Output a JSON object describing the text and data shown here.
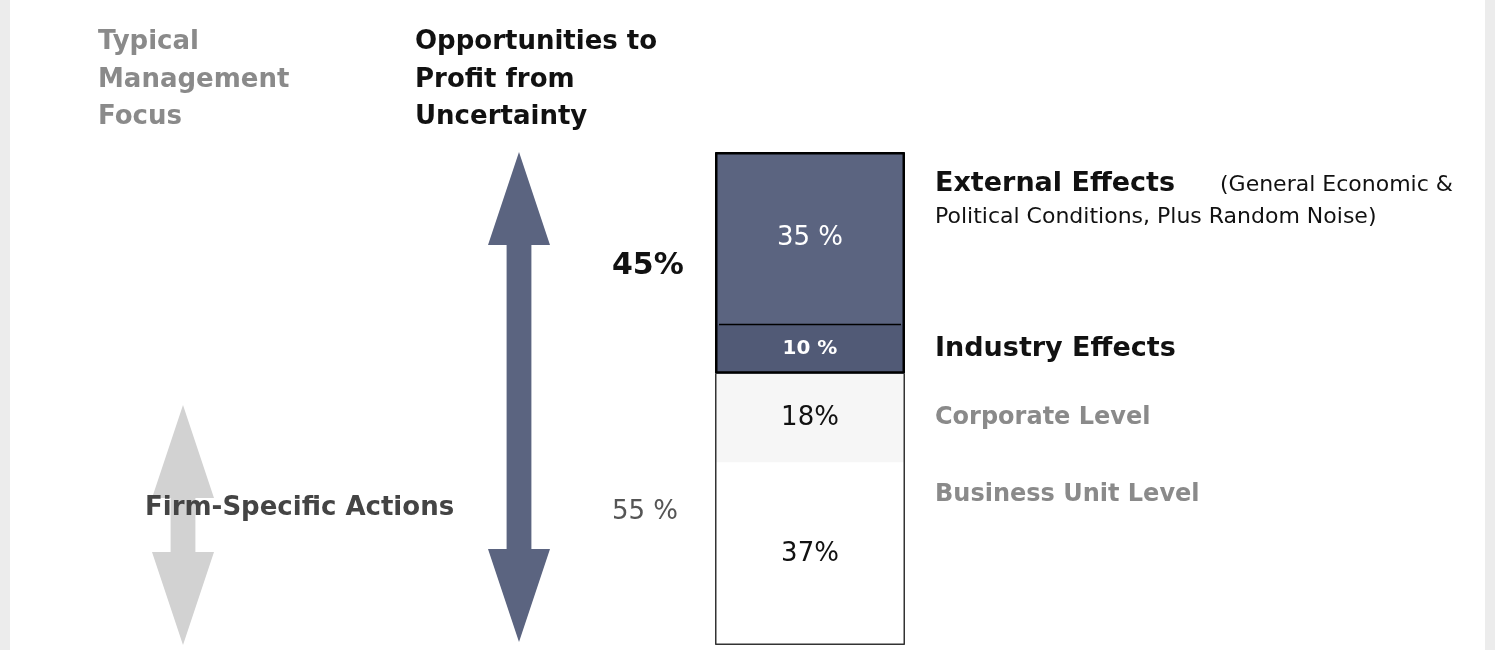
{
  "chart_data": {
    "type": "bar",
    "stacked": true,
    "legend": false,
    "categories": [
      null
    ],
    "series": [
      {
        "name": "Business Unit Level",
        "color": "#ffffff",
        "values": [
          37
        ],
        "value_labels": [
          "37%"
        ]
      },
      {
        "name": "Corporate Level",
        "color": "#f6f6f6",
        "values": [
          18
        ],
        "value_labels": [
          "18%"
        ]
      },
      {
        "name": "Industry Effects",
        "color": "#515a76",
        "values": [
          10
        ],
        "value_labels": [
          "10 %"
        ]
      },
      {
        "name": "External Effects",
        "color": "#5b6480",
        "values": [
          35
        ],
        "value_labels": [
          "35 %"
        ]
      }
    ],
    "annotations": [
      "(General Economic & Political Conditions,  Plus Random Noise)",
      "Typical Management Focus",
      "Opportunities to Profit from Uncertainty",
      "45%",
      "55 %",
      "Firm-Specific Actions"
    ]
  }
}
